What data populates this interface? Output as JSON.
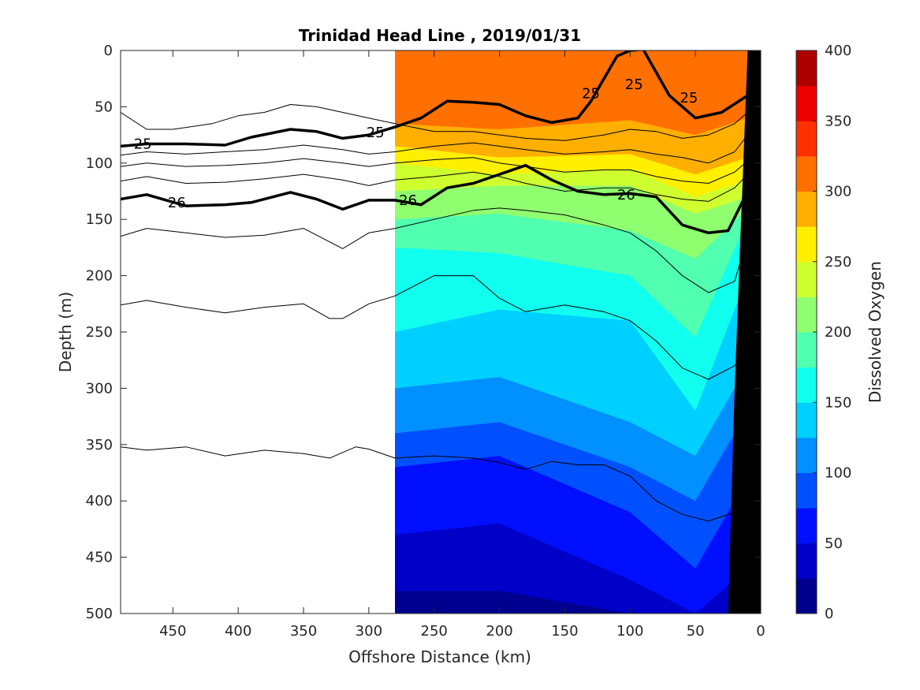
{
  "chart_data": {
    "type": "heatmap",
    "title": "Trinidad Head Line , 2019/01/31",
    "xlabel": "Offshore Distance (km)",
    "ylabel": "Depth (m)",
    "xlim": [
      490,
      0
    ],
    "ylim": [
      0,
      500
    ],
    "x_reversed": true,
    "y_reversed": true,
    "x_ticks": [
      450,
      400,
      350,
      300,
      250,
      200,
      150,
      100,
      50,
      0
    ],
    "x_tick_labels": [
      "450",
      "400",
      "350",
      "300",
      "250",
      "200",
      "150",
      "100",
      "50",
      "0"
    ],
    "y_ticks": [
      0,
      50,
      100,
      150,
      200,
      250,
      300,
      350,
      400,
      450,
      500
    ],
    "y_tick_labels": [
      "0",
      "50",
      "100",
      "150",
      "200",
      "250",
      "300",
      "350",
      "400",
      "450",
      "500"
    ],
    "colorbar": {
      "label": "Dissolved Oxygen",
      "range": [
        0,
        400
      ],
      "step": 25,
      "tick_values": [
        0,
        50,
        100,
        150,
        200,
        250,
        300,
        350,
        400
      ],
      "tick_labels": [
        "0",
        "50",
        "100",
        "150",
        "200",
        "250",
        "300",
        "350",
        "400"
      ],
      "colors": [
        "#00008f",
        "#0000c8",
        "#0010ff",
        "#0050ff",
        "#0090ff",
        "#00d0ff",
        "#10ffef",
        "#50ffaf",
        "#90ff6f",
        "#d0ff2f",
        "#ffef00",
        "#ffaf00",
        "#ff7000",
        "#ff3000",
        "#ef0000",
        "#af0000"
      ]
    },
    "data_extent_x": [
      280,
      0
    ],
    "oxygen_profiles": {
      "x": [
        280,
        200,
        100,
        50,
        10
      ],
      "boundary_depths": {
        "337.5": [
          0,
          0,
          0,
          0,
          0
        ],
        "312.5": [
          0,
          0,
          0,
          0,
          0
        ],
        "287.5": [
          65,
          70,
          62,
          75,
          60
        ],
        "262.5": [
          85,
          95,
          92,
          110,
          95
        ],
        "237.5": [
          100,
          110,
          105,
          130,
          115
        ],
        "212.5": [
          125,
          120,
          120,
          145,
          130
        ],
        "187.5": [
          150,
          145,
          160,
          185,
          140
        ],
        "162.5": [
          175,
          180,
          200,
          255,
          150
        ],
        "137.5": [
          250,
          230,
          240,
          320,
          200
        ],
        "112.5": [
          300,
          290,
          330,
          360,
          280
        ],
        "87.5": [
          340,
          330,
          370,
          400,
          320
        ],
        "62.5": [
          370,
          360,
          410,
          460,
          380
        ],
        "37.5": [
          430,
          420,
          470,
          500,
          460
        ],
        "12.5": [
          480,
          480,
          500,
          500,
          500
        ]
      }
    },
    "contours": [
      {
        "label": "25",
        "bold": true,
        "x": [
          490,
          470,
          440,
          410,
          390,
          360,
          340,
          320,
          300,
          280,
          260,
          240,
          220,
          200,
          180,
          160,
          140,
          130,
          120,
          110,
          100,
          90,
          70,
          50,
          30,
          10
        ],
        "y": [
          85,
          83,
          83,
          84,
          77,
          70,
          72,
          78,
          75,
          68,
          60,
          45,
          46,
          48,
          58,
          64,
          60,
          45,
          25,
          5,
          0,
          -1,
          40,
          60,
          55,
          40
        ]
      },
      {
        "label": "26",
        "bold": true,
        "x": [
          490,
          470,
          440,
          410,
          390,
          360,
          340,
          320,
          300,
          280,
          260,
          240,
          220,
          200,
          180,
          160,
          140,
          120,
          100,
          80,
          60,
          40,
          25,
          10
        ],
        "y": [
          132,
          128,
          138,
          137,
          135,
          126,
          132,
          141,
          133,
          133,
          137,
          122,
          118,
          110,
          102,
          115,
          125,
          128,
          127,
          130,
          155,
          162,
          160,
          125
        ]
      },
      {
        "label": "",
        "bold": false,
        "x": [
          490,
          470,
          450,
          420,
          400,
          380,
          360,
          340,
          320,
          300,
          280,
          250,
          220,
          200,
          180,
          150,
          120,
          100,
          80,
          60,
          40,
          20,
          10
        ],
        "y": [
          55,
          70,
          70,
          65,
          58,
          55,
          48,
          50,
          55,
          60,
          65,
          72,
          72,
          75,
          78,
          80,
          75,
          70,
          72,
          78,
          75,
          65,
          55
        ]
      },
      {
        "label": "",
        "bold": false,
        "x": [
          490,
          470,
          440,
          410,
          380,
          350,
          320,
          300,
          280,
          250,
          220,
          200,
          180,
          150,
          120,
          100,
          80,
          60,
          40,
          20,
          10
        ],
        "y": [
          93,
          90,
          92,
          90,
          88,
          84,
          88,
          92,
          90,
          85,
          82,
          85,
          88,
          92,
          90,
          88,
          92,
          95,
          100,
          90,
          75
        ]
      },
      {
        "label": "",
        "bold": false,
        "x": [
          490,
          470,
          440,
          410,
          380,
          350,
          320,
          300,
          280,
          250,
          220,
          200,
          180,
          150,
          120,
          100,
          80,
          60,
          40,
          20,
          10
        ],
        "y": [
          103,
          100,
          103,
          102,
          100,
          96,
          100,
          103,
          100,
          97,
          95,
          100,
          103,
          108,
          106,
          106,
          112,
          116,
          118,
          108,
          98
        ]
      },
      {
        "label": "",
        "bold": false,
        "x": [
          490,
          470,
          440,
          410,
          380,
          350,
          320,
          300,
          280,
          250,
          220,
          200,
          180,
          150,
          120,
          100,
          80,
          60,
          40,
          20,
          10
        ],
        "y": [
          116,
          112,
          118,
          117,
          114,
          110,
          115,
          120,
          115,
          112,
          108,
          112,
          118,
          125,
          122,
          122,
          128,
          132,
          134,
          122,
          110
        ]
      },
      {
        "label": "",
        "bold": false,
        "x": [
          490,
          470,
          440,
          410,
          380,
          350,
          320,
          300,
          280,
          250,
          220,
          200,
          180,
          150,
          120,
          100,
          80,
          60,
          40,
          20,
          10
        ],
        "y": [
          165,
          158,
          162,
          166,
          164,
          158,
          176,
          162,
          158,
          150,
          142,
          140,
          142,
          146,
          155,
          162,
          178,
          200,
          215,
          205,
          165
        ]
      },
      {
        "label": "",
        "bold": false,
        "x": [
          490,
          470,
          440,
          410,
          380,
          350,
          330,
          320,
          300,
          280,
          250,
          220,
          200,
          180,
          150,
          120,
          100,
          80,
          60,
          40,
          20,
          10
        ],
        "y": [
          226,
          222,
          228,
          233,
          228,
          225,
          238,
          238,
          225,
          218,
          200,
          200,
          220,
          232,
          226,
          232,
          240,
          258,
          282,
          292,
          280,
          260
        ]
      },
      {
        "label": "",
        "bold": false,
        "x": [
          490,
          470,
          440,
          410,
          380,
          350,
          330,
          310,
          300,
          280,
          250,
          220,
          200,
          180,
          160,
          140,
          120,
          100,
          80,
          60,
          40,
          20,
          10
        ],
        "y": [
          352,
          355,
          352,
          360,
          355,
          358,
          362,
          352,
          354,
          362,
          360,
          362,
          366,
          372,
          365,
          368,
          368,
          378,
          400,
          412,
          418,
          410,
          395
        ]
      }
    ],
    "contour_label_positions": [
      {
        "text": "25",
        "x": 473,
        "y": 83
      },
      {
        "text": "25",
        "x": 295,
        "y": 73
      },
      {
        "text": "25",
        "x": 130,
        "y": 38
      },
      {
        "text": "25",
        "x": 97,
        "y": 30
      },
      {
        "text": "25",
        "x": 55,
        "y": 42
      },
      {
        "text": "26",
        "x": 447,
        "y": 135
      },
      {
        "text": "26",
        "x": 270,
        "y": 133
      },
      {
        "text": "26",
        "x": 103,
        "y": 128
      }
    ],
    "bathymetry": {
      "x": [
        0,
        10,
        20,
        25,
        0
      ],
      "y": [
        0,
        0,
        300,
        500,
        500
      ],
      "color": "#000000"
    }
  }
}
